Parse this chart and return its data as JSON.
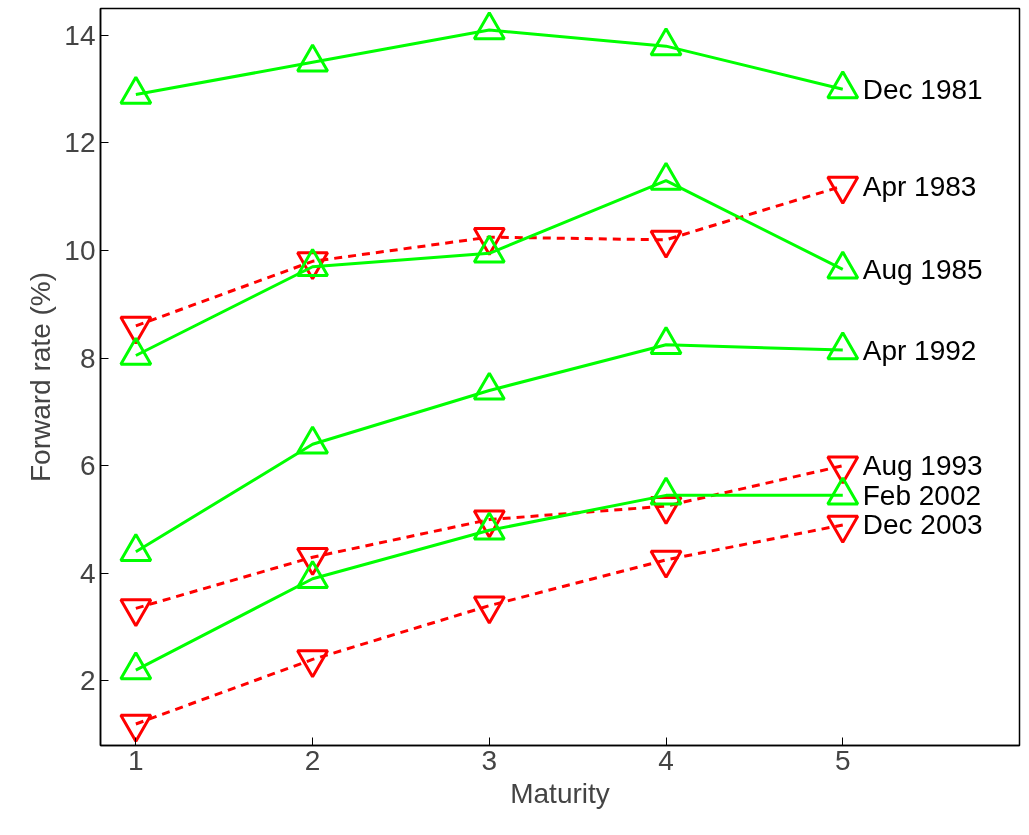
{
  "chart_data": {
    "type": "line",
    "xlabel": "Maturity",
    "ylabel": "Forward rate (%)",
    "x": [
      1,
      2,
      3,
      4,
      5
    ],
    "xlim": [
      0.8,
      6
    ],
    "ylim": [
      0.8,
      14.5
    ],
    "xticks": [
      1,
      2,
      3,
      4,
      5
    ],
    "yticks": [
      2,
      4,
      6,
      8,
      10,
      12,
      14
    ],
    "grid": false,
    "legend": false,
    "series": [
      {
        "name": "Dec 1981",
        "color": "#00ff00",
        "marker": "triangle",
        "line_style": "solid",
        "values": [
          12.9,
          13.5,
          14.1,
          13.8,
          13.0
        ]
      },
      {
        "name": "Apr 1983",
        "color": "#ff0000",
        "marker": "triangle",
        "line_style": "dashed",
        "values": [
          8.6,
          9.8,
          10.25,
          10.2,
          11.2
        ]
      },
      {
        "name": "Aug 1985",
        "color": "#00ff00",
        "marker": "triangle",
        "line_style": "solid",
        "values": [
          8.05,
          9.7,
          9.95,
          11.3,
          9.65
        ]
      },
      {
        "name": "Apr 1992",
        "color": "#00ff00",
        "marker": "triangle",
        "line_style": "solid",
        "values": [
          4.4,
          6.4,
          7.4,
          8.25,
          8.15
        ]
      },
      {
        "name": "Aug 1993",
        "color": "#ff0000",
        "marker": "triangle",
        "line_style": "dashed",
        "values": [
          3.35,
          4.3,
          5.0,
          5.25,
          6.0
        ]
      },
      {
        "name": "Feb 2002",
        "color": "#00ff00",
        "marker": "triangle",
        "line_style": "solid",
        "values": [
          2.2,
          3.9,
          4.8,
          5.45,
          5.45
        ]
      },
      {
        "name": "Dec 2003",
        "color": "#ff0000",
        "marker": "triangle",
        "line_style": "dashed",
        "values": [
          1.2,
          2.4,
          3.4,
          4.25,
          4.9
        ]
      }
    ]
  }
}
